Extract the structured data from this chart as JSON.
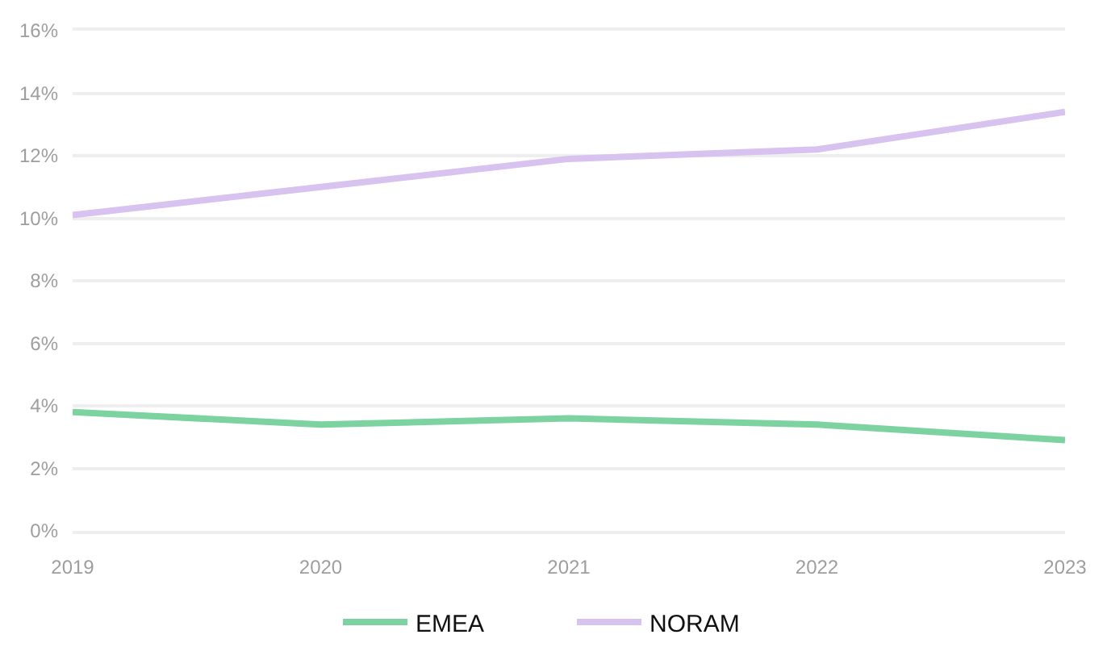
{
  "chart_data": {
    "type": "line",
    "categories": [
      "2019",
      "2020",
      "2021",
      "2022",
      "2023"
    ],
    "series": [
      {
        "name": "EMEA",
        "color": "#7dd3a0",
        "values": [
          3.8,
          3.4,
          3.6,
          3.4,
          2.9
        ]
      },
      {
        "name": "NORAM",
        "color": "#d8c2f0",
        "values": [
          10.1,
          11.0,
          11.9,
          12.2,
          13.4
        ]
      }
    ],
    "ylim": [
      0,
      16
    ],
    "yticks": [
      {
        "value": 0,
        "label": "0%"
      },
      {
        "value": 2,
        "label": "2%"
      },
      {
        "value": 4,
        "label": "4%"
      },
      {
        "value": 6,
        "label": "6%"
      },
      {
        "value": 8,
        "label": "8%"
      },
      {
        "value": 10,
        "label": "10%"
      },
      {
        "value": 12,
        "label": "12%"
      },
      {
        "value": 14,
        "label": "14%"
      },
      {
        "value": 16,
        "label": "16%"
      }
    ],
    "grid": "y",
    "legend": "bottom",
    "marker": "none",
    "line_style": "solid"
  }
}
